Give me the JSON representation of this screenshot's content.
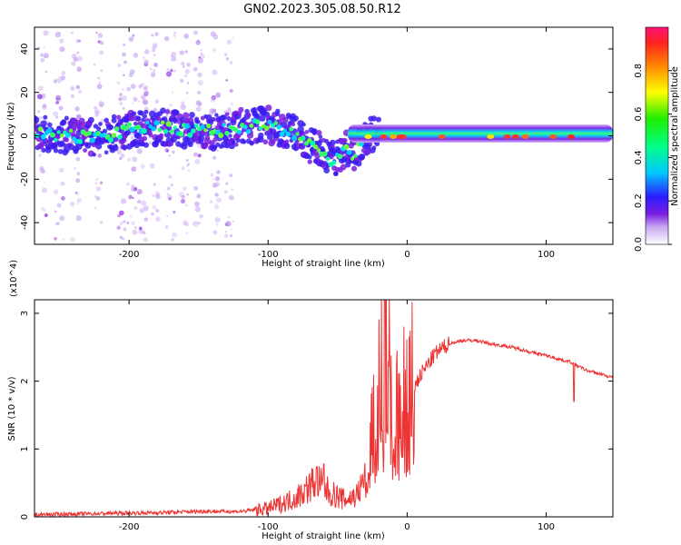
{
  "title": "GN02.2023.305.08.50.R12",
  "chart_data": [
    {
      "type": "heatmap",
      "name": "spectrogram",
      "xlabel": "Height of straight line (km)",
      "ylabel": "Frequency (Hz)",
      "xlim": [
        -268,
        148
      ],
      "ylim": [
        -50,
        50
      ],
      "xticks": [
        -200,
        -100,
        0,
        100
      ],
      "yticks": [
        -40,
        -20,
        0,
        20,
        40
      ],
      "ridge": [
        [
          -268,
          1
        ],
        [
          -240,
          0
        ],
        [
          -220,
          -1
        ],
        [
          -200,
          3
        ],
        [
          -180,
          4
        ],
        [
          -160,
          3
        ],
        [
          -140,
          2
        ],
        [
          -120,
          4
        ],
        [
          -100,
          5
        ],
        [
          -90,
          3
        ],
        [
          -80,
          1
        ],
        [
          -70,
          -4
        ],
        [
          -60,
          -8
        ],
        [
          -55,
          -12
        ],
        [
          -45,
          -6
        ],
        [
          -38,
          -9
        ],
        [
          -30,
          0
        ],
        [
          -20,
          2
        ],
        [
          -10,
          1
        ],
        [
          0,
          0
        ],
        [
          50,
          0.5
        ],
        [
          80,
          1.5
        ],
        [
          100,
          0
        ],
        [
          120,
          0
        ],
        [
          148,
          0
        ]
      ],
      "colorbar": {
        "label": "Normalized spectral amplitude",
        "range": [
          0,
          1
        ],
        "ticks": [
          "0.0",
          "0.2",
          "0.4",
          "0.6",
          "0.8"
        ]
      }
    },
    {
      "type": "line",
      "name": "snr",
      "xlabel": "Height of straight line (km)",
      "ylabel": "SNR (10 * v/v)",
      "y_multiplier": "(x10^4)",
      "xlim": [
        -268,
        148
      ],
      "ylim": [
        0,
        3.2
      ],
      "xticks": [
        -200,
        -100,
        0,
        100
      ],
      "yticks": [
        0,
        1,
        2,
        3
      ],
      "color": "#ee3333",
      "x": [
        -268,
        -220,
        -180,
        -150,
        -120,
        -110,
        -100,
        -90,
        -80,
        -70,
        -65,
        -60,
        -55,
        -50,
        -45,
        -40,
        -35,
        -30,
        -25,
        -20,
        -15,
        -10,
        -5,
        0,
        5,
        10,
        20,
        30,
        40,
        50,
        60,
        70,
        80,
        90,
        100,
        110,
        118,
        120,
        125,
        130,
        140,
        148
      ],
      "y": [
        0.03,
        0.05,
        0.06,
        0.08,
        0.08,
        0.1,
        0.12,
        0.2,
        0.28,
        0.45,
        0.55,
        0.42,
        0.35,
        0.3,
        0.25,
        0.28,
        0.35,
        0.6,
        1.2,
        1.8,
        2.2,
        1.6,
        1.5,
        1.8,
        1.9,
        2.1,
        2.4,
        2.55,
        2.6,
        2.6,
        2.55,
        2.52,
        2.48,
        2.42,
        2.38,
        2.32,
        2.28,
        2.25,
        2.2,
        2.15,
        2.1,
        2.05
      ],
      "spikes": [
        {
          "x": -60,
          "y": 0.78
        },
        {
          "x": -16,
          "y": 3.25
        },
        {
          "x": 120,
          "y": 1.7
        }
      ]
    }
  ]
}
